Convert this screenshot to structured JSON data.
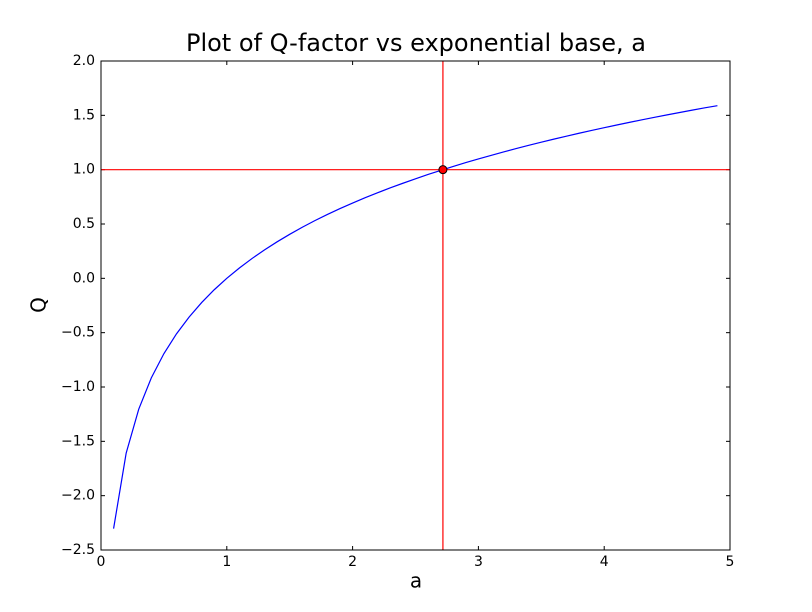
{
  "chart_data": {
    "type": "line",
    "title": "Plot of Q-factor vs exponential base, a",
    "x_label": "a",
    "y_label": "Q",
    "x": [
      0.1,
      0.2,
      0.3,
      0.4,
      0.5,
      0.6,
      0.7,
      0.8,
      0.9,
      1.0,
      1.1,
      1.2,
      1.3,
      1.4,
      1.5,
      1.6,
      1.7,
      1.8,
      1.9,
      2.0,
      2.1,
      2.2,
      2.3,
      2.4,
      2.5,
      2.6,
      2.7,
      2.8,
      2.9,
      3.0,
      3.1,
      3.2,
      3.3,
      3.4,
      3.5,
      3.6,
      3.7,
      3.8,
      3.9,
      4.0,
      4.1,
      4.2,
      4.3,
      4.4,
      4.5,
      4.6,
      4.7,
      4.8,
      4.9
    ],
    "series": [
      {
        "color": "#0000ff",
        "values": [
          -2.303,
          -1.609,
          -1.204,
          -0.916,
          -0.693,
          -0.511,
          -0.357,
          -0.223,
          -0.105,
          0,
          0.095,
          0.182,
          0.262,
          0.336,
          0.405,
          0.47,
          0.531,
          0.588,
          0.642,
          0.693,
          0.742,
          0.788,
          0.833,
          0.875,
          0.916,
          0.956,
          0.993,
          1.03,
          1.065,
          1.099,
          1.131,
          1.163,
          1.194,
          1.224,
          1.253,
          1.281,
          1.308,
          1.335,
          1.361,
          1.386,
          1.411,
          1.435,
          1.459,
          1.482,
          1.504,
          1.526,
          1.548,
          1.569,
          1.589
        ]
      }
    ],
    "highlight_point": {
      "x": 2.718,
      "y": 1,
      "color": "#ff0000"
    },
    "xlim": [
      0,
      5
    ],
    "xticks": [
      0,
      1,
      2,
      3,
      4,
      5
    ],
    "ylim": [
      -2.5,
      2.0
    ],
    "yticks": [
      {
        "value": -2.5,
        "label": "−2.5"
      },
      {
        "value": -2.0,
        "label": "−2.0"
      },
      {
        "value": -1.5,
        "label": "−1.5"
      },
      {
        "value": -1.0,
        "label": "−1.0"
      },
      {
        "value": -0.5,
        "label": "−0.5"
      },
      {
        "value": 0,
        "label": "0.0"
      },
      0.5,
      {
        "value": 1,
        "label": "1.0"
      },
      1.5,
      {
        "value": 2,
        "label": "2.0"
      }
    ]
  }
}
